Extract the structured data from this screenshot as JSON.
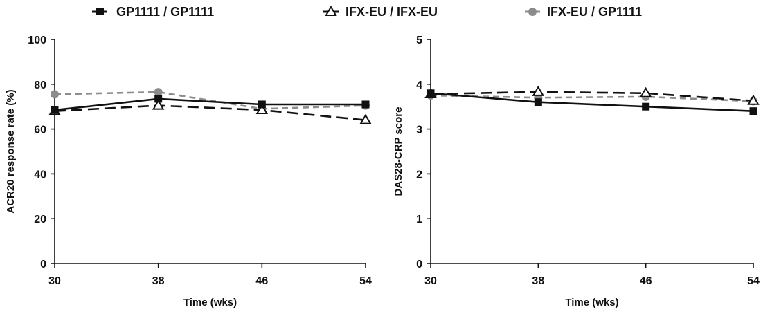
{
  "legend": [
    {
      "label": "GP1111 / GP1111",
      "color": "#111111",
      "marker": "square",
      "dash": "solid"
    },
    {
      "label": "IFX-EU / IFX-EU",
      "color": "#111111",
      "marker": "open-triangle",
      "dash": "long-dash"
    },
    {
      "label": "IFX-EU / GP1111",
      "color": "#8c8c8c",
      "marker": "circle",
      "dash": "dash"
    }
  ],
  "chart_data": [
    {
      "type": "line",
      "title": "",
      "xlabel": "Time (wks)",
      "ylabel": "ACR20 response rate (%)",
      "x": [
        30,
        38,
        46,
        54
      ],
      "xlim": [
        30,
        54
      ],
      "ylim": [
        0,
        100
      ],
      "yticks": [
        0,
        20,
        40,
        60,
        80,
        100
      ],
      "grid": false,
      "legend_position": "top",
      "series": [
        {
          "name": "GP1111 / GP1111",
          "values": [
            68.5,
            73.5,
            71,
            71
          ]
        },
        {
          "name": "IFX-EU / IFX-EU",
          "values": [
            68,
            70.5,
            68.5,
            64
          ]
        },
        {
          "name": "IFX-EU / GP1111",
          "values": [
            75.5,
            76.5,
            69,
            70.5
          ]
        }
      ]
    },
    {
      "type": "line",
      "title": "",
      "xlabel": "Time (wks)",
      "ylabel": "DAS28-CRP score",
      "x": [
        30,
        38,
        46,
        54
      ],
      "xlim": [
        30,
        54
      ],
      "ylim": [
        0,
        5
      ],
      "yticks": [
        0,
        1,
        2,
        3,
        4,
        5
      ],
      "grid": false,
      "legend_position": "top",
      "series": [
        {
          "name": "GP1111 / GP1111",
          "values": [
            3.8,
            3.6,
            3.5,
            3.4
          ]
        },
        {
          "name": "IFX-EU / IFX-EU",
          "values": [
            3.78,
            3.83,
            3.8,
            3.63
          ]
        },
        {
          "name": "IFX-EU / GP1111",
          "values": [
            3.75,
            3.7,
            3.72,
            3.62
          ]
        }
      ]
    }
  ]
}
